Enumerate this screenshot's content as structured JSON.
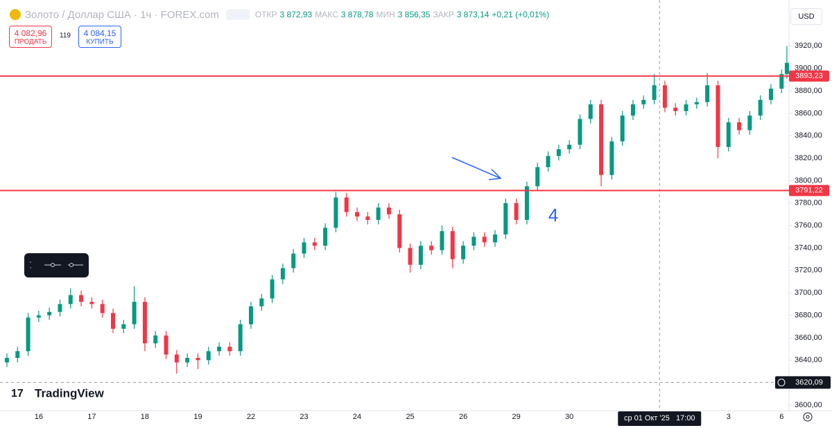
{
  "legend": {
    "symbol": "Золото / Доллар США · 1ч · FOREX.com",
    "ohlc": [
      {
        "key": "ОТКР",
        "value": "3 872,93"
      },
      {
        "key": "МАКС",
        "value": "3 878,78"
      },
      {
        "key": "МИН",
        "value": "3 856,35"
      },
      {
        "key": "ЗАКР",
        "value": "3 873,14"
      }
    ],
    "change": "+0,21 (+0,01%)"
  },
  "trade": {
    "sell_price": "4 082,96",
    "sell_label": "ПРОДАТЬ",
    "spread": "119",
    "buy_price": "4 084,15",
    "buy_label": "КУПИТЬ"
  },
  "currency": "USD",
  "brand": "TradingView",
  "chart_data": {
    "type": "candlestick",
    "up_color": "#089981",
    "down_color": "#f23645",
    "grid": false,
    "x": [
      -0.6,
      -0.4,
      -0.2,
      0,
      0.2,
      0.4,
      0.6,
      0.8,
      1,
      1.2,
      1.4,
      1.6,
      1.8,
      2,
      2.2,
      2.4,
      2.6,
      2.8,
      3,
      3.2,
      3.4,
      3.6,
      3.8,
      4,
      4.2,
      4.4,
      4.6,
      4.8,
      5,
      5.2,
      5.4,
      5.6,
      5.8,
      6,
      6.2,
      6.4,
      6.6,
      6.8,
      7,
      7.2,
      7.4,
      7.6,
      7.8,
      8,
      8.2,
      8.4,
      8.6,
      8.8,
      9,
      9.2,
      9.4,
      9.6,
      9.8,
      10,
      10.2,
      10.4,
      10.6,
      10.8,
      11,
      11.2,
      11.4,
      11.6,
      11.8,
      12,
      12.2,
      12.4,
      12.6,
      12.8,
      13,
      13.2,
      13.4,
      13.6,
      13.8,
      14,
      14.1
    ],
    "open": [
      3638,
      3642,
      3648,
      3678,
      3680,
      3683,
      3690,
      3698,
      3692,
      3690,
      3682,
      3668,
      3672,
      3692,
      3655,
      3662,
      3645,
      3638,
      3642,
      3640,
      3648,
      3652,
      3648,
      3672,
      3688,
      3695,
      3712,
      3722,
      3735,
      3745,
      3742,
      3758,
      3785,
      3772,
      3768,
      3765,
      3776,
      3770,
      3740,
      3725,
      3742,
      3738,
      3755,
      3730,
      3742,
      3750,
      3745,
      3752,
      3780,
      3765,
      3795,
      3812,
      3822,
      3828,
      3832,
      3855,
      3868,
      3805,
      3835,
      3858,
      3868,
      3872,
      3885,
      3865,
      3862,
      3868,
      3870,
      3885,
      3830,
      3852,
      3845,
      3858,
      3872,
      3882,
      3895
    ],
    "high": [
      3646,
      3652,
      3682,
      3684,
      3687,
      3694,
      3704,
      3702,
      3696,
      3694,
      3686,
      3676,
      3706,
      3696,
      3666,
      3666,
      3649,
      3646,
      3646,
      3652,
      3656,
      3656,
      3676,
      3692,
      3699,
      3716,
      3726,
      3739,
      3749,
      3749,
      3762,
      3790,
      3789,
      3776,
      3772,
      3780,
      3780,
      3774,
      3744,
      3746,
      3746,
      3760,
      3759,
      3746,
      3754,
      3754,
      3756,
      3784,
      3784,
      3799,
      3816,
      3826,
      3832,
      3836,
      3859,
      3872,
      3872,
      3839,
      3862,
      3872,
      3876,
      3895,
      3889,
      3869,
      3872,
      3874,
      3896,
      3889,
      3856,
      3856,
      3862,
      3876,
      3886,
      3899,
      3920
    ],
    "low": [
      3634,
      3638,
      3644,
      3674,
      3676,
      3679,
      3686,
      3688,
      3686,
      3678,
      3664,
      3664,
      3668,
      3648,
      3651,
      3641,
      3628,
      3634,
      3632,
      3636,
      3644,
      3644,
      3644,
      3668,
      3684,
      3691,
      3708,
      3718,
      3731,
      3738,
      3738,
      3754,
      3768,
      3764,
      3761,
      3761,
      3766,
      3736,
      3718,
      3721,
      3734,
      3734,
      3722,
      3726,
      3738,
      3741,
      3741,
      3748,
      3761,
      3761,
      3791,
      3808,
      3818,
      3824,
      3828,
      3851,
      3795,
      3801,
      3831,
      3854,
      3864,
      3868,
      3861,
      3858,
      3858,
      3864,
      3866,
      3820,
      3826,
      3841,
      3841,
      3854,
      3868,
      3878,
      3891
    ],
    "close": [
      3642,
      3648,
      3678,
      3680,
      3683,
      3690,
      3698,
      3692,
      3690,
      3682,
      3668,
      3672,
      3692,
      3655,
      3662,
      3645,
      3638,
      3642,
      3640,
      3648,
      3652,
      3648,
      3672,
      3688,
      3695,
      3712,
      3722,
      3735,
      3745,
      3742,
      3758,
      3785,
      3772,
      3768,
      3765,
      3776,
      3770,
      3740,
      3725,
      3742,
      3738,
      3755,
      3730,
      3742,
      3750,
      3745,
      3752,
      3780,
      3765,
      3795,
      3812,
      3822,
      3828,
      3832,
      3855,
      3868,
      3805,
      3835,
      3858,
      3868,
      3872,
      3885,
      3865,
      3862,
      3868,
      3870,
      3885,
      3830,
      3852,
      3845,
      3858,
      3872,
      3882,
      3895,
      3905
    ],
    "xlim": [
      -0.73,
      14.14
    ],
    "xticks": [
      {
        "value": 0,
        "label": "16"
      },
      {
        "value": 1,
        "label": "17"
      },
      {
        "value": 2,
        "label": "18"
      },
      {
        "value": 3,
        "label": "19"
      },
      {
        "value": 4,
        "label": "22"
      },
      {
        "value": 5,
        "label": "23"
      },
      {
        "value": 6,
        "label": "24"
      },
      {
        "value": 7,
        "label": "25"
      },
      {
        "value": 8,
        "label": "26"
      },
      {
        "value": 9,
        "label": "29"
      },
      {
        "value": 10,
        "label": "30"
      },
      {
        "value": 13,
        "label": "3"
      },
      {
        "value": 14,
        "label": "6"
      }
    ],
    "ylim": [
      3595,
      3961
    ],
    "yticks": [
      {
        "value": 3600,
        "label": "3600,00"
      },
      {
        "value": 3620,
        "label": "3620,00"
      },
      {
        "value": 3640,
        "label": "3640,00"
      },
      {
        "value": 3660,
        "label": "3660,00"
      },
      {
        "value": 3680,
        "label": "3680,00"
      },
      {
        "value": 3700,
        "label": "3700,00"
      },
      {
        "value": 3720,
        "label": "3720,00"
      },
      {
        "value": 3740,
        "label": "3740,00"
      },
      {
        "value": 3760,
        "label": "3760,00"
      },
      {
        "value": 3780,
        "label": "3780,00"
      },
      {
        "value": 3800,
        "label": "3800,00"
      },
      {
        "value": 3820,
        "label": "3820,00"
      },
      {
        "value": 3840,
        "label": "3840,00"
      },
      {
        "value": 3860,
        "label": "3860,00"
      },
      {
        "value": 3880,
        "label": "3880,00"
      },
      {
        "value": 3900,
        "label": "3900,00"
      },
      {
        "value": 3920,
        "label": "3920,00"
      }
    ],
    "hlines": [
      {
        "value": 3893.23,
        "label": "3893,23",
        "color": "#f23645"
      },
      {
        "value": 3791.22,
        "label": "3791,22",
        "color": "#f23645"
      }
    ],
    "crosshair": {
      "x": 11.7,
      "time": "ср 01 Окт '25   17:00",
      "price": {
        "value": 3620.09,
        "label": "3620,09"
      }
    },
    "annotation": {
      "text": "4",
      "color": "#2962ff"
    }
  }
}
